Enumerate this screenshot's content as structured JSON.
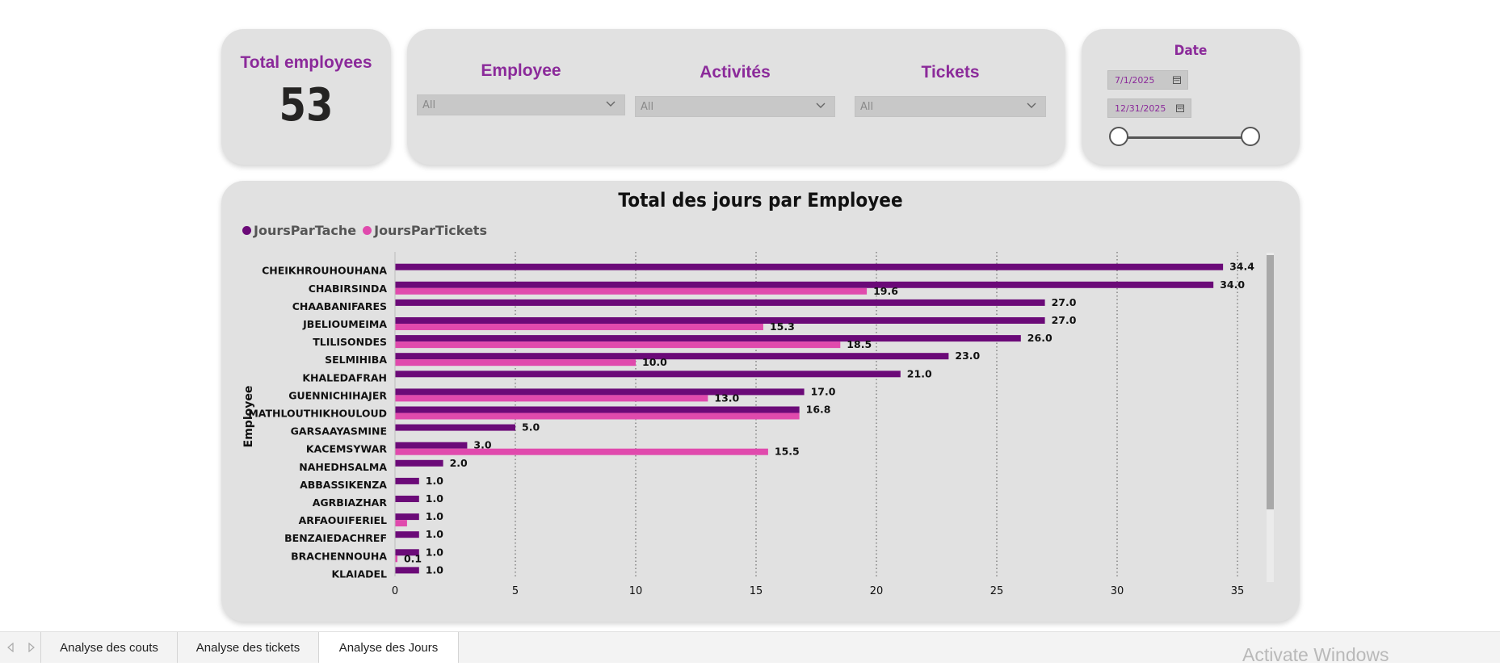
{
  "kpi": {
    "title": "Total employees",
    "value": "53"
  },
  "filters": [
    {
      "title": "Employee",
      "value": "All"
    },
    {
      "title": "Activités",
      "value": "All"
    },
    {
      "title": "Tickets",
      "value": "All"
    }
  ],
  "date_slicer": {
    "title": "Date",
    "start": "7/1/2025",
    "end": "12/31/2025",
    "range": [
      0,
      1
    ]
  },
  "chart_data": {
    "type": "bar",
    "orientation": "horizontal",
    "title": "Total des jours par Employee",
    "ylabel": "Employee",
    "xlabel": "",
    "xlim": [
      0,
      35
    ],
    "xticks": [
      0,
      5,
      10,
      15,
      20,
      25,
      30,
      35
    ],
    "legend_position": "top-left",
    "categories": [
      "CHEIKHROUHOUHANA",
      "CHABIRSINDA",
      "CHAABANIFARES",
      "JBELIOUMEIMA",
      "TLILISONDES",
      "SELMIHIBA",
      "KHALEDAFRAH",
      "GUENNICHIHAJER",
      "MATHLOUTHIKHOULOUD",
      "GARSAAYASMINE",
      "KACEMSYWAR",
      "NAHEDHSALMA",
      "ABBASSIKENZA",
      "AGRBIAZHAR",
      "ARFAOUIFERIEL",
      "BENZAIEDACHREF",
      "BRACHENNOUHA",
      "KLAIADEL"
    ],
    "series": [
      {
        "name": "JoursParTache",
        "color": "#6b0a78",
        "values": [
          34.4,
          34.0,
          27.0,
          27.0,
          26.0,
          23.0,
          21.0,
          17.0,
          16.8,
          5.0,
          3.0,
          2.0,
          1.0,
          1.0,
          1.0,
          1.0,
          1.0,
          1.0
        ],
        "labels": [
          "34.4",
          "34.0",
          "27.0",
          "27.0",
          "26.0",
          "23.0",
          "21.0",
          "17.0",
          "16.8",
          "5.0",
          "3.0",
          "2.0",
          "1.0",
          "1.0",
          "1.0",
          "1.0",
          "1.0",
          "1.0"
        ]
      },
      {
        "name": "JoursParTickets",
        "color": "#e04aad",
        "values": [
          null,
          19.6,
          null,
          15.3,
          18.5,
          10.0,
          null,
          13.0,
          16.8,
          null,
          15.5,
          null,
          null,
          null,
          0.5,
          null,
          0.1,
          null
        ],
        "labels": [
          null,
          "19.6",
          null,
          "15.3",
          "18.5",
          "10.0",
          null,
          "13.0",
          null,
          null,
          "15.5",
          null,
          null,
          null,
          null,
          null,
          "0.1",
          null
        ]
      }
    ]
  },
  "tabs": [
    {
      "label": "Analyse des couts",
      "active": false
    },
    {
      "label": "Analyse des tickets",
      "active": false
    },
    {
      "label": "Analyse des Jours",
      "active": true
    }
  ],
  "watermark": "Activate Windows"
}
